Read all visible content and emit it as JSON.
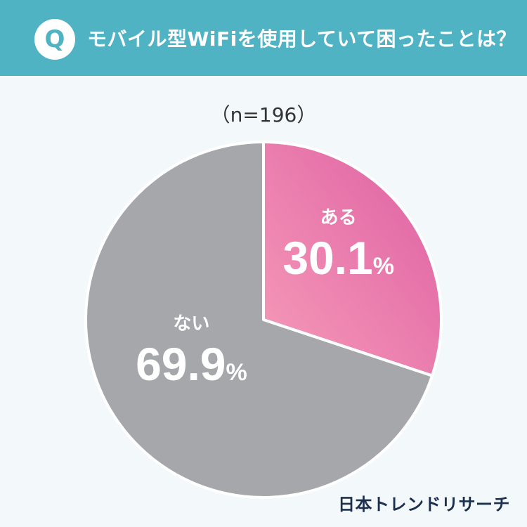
{
  "header": {
    "badge": "Q",
    "question": "モバイル型WiFiを使用していて困ったことは？",
    "bg_color": "#4fb3c4"
  },
  "sample": "（n=196）",
  "chart_data": {
    "type": "pie",
    "title": "モバイル型WiFiを使用していて困ったことは？",
    "slices": [
      {
        "label": "ある",
        "value": 30.1,
        "unit": "%",
        "color": "#ee82ab"
      },
      {
        "label": "ない",
        "value": 69.9,
        "unit": "%",
        "color": "#a6a7ab"
      }
    ],
    "start_angle": "12 o'clock",
    "direction": "clockwise"
  },
  "brand": "日本トレンドリサーチ",
  "colors": {
    "background": "#f3f8fb",
    "brand_text": "#1c2f4e"
  }
}
